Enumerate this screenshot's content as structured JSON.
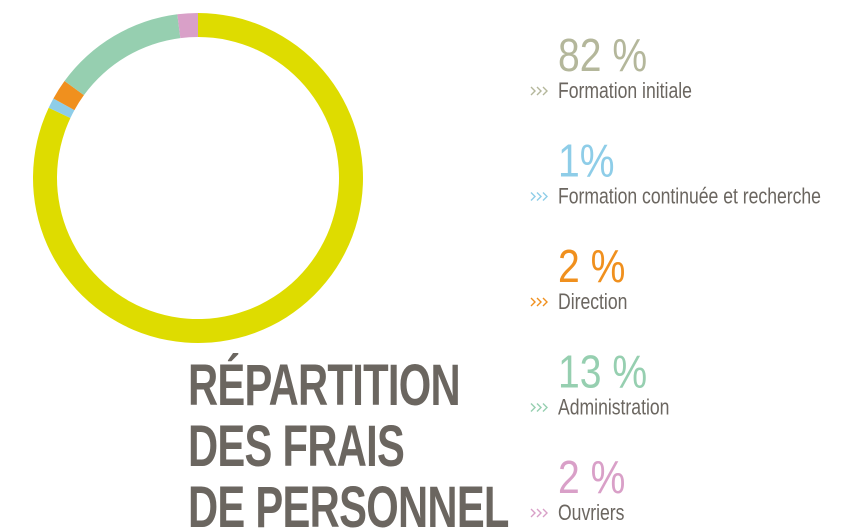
{
  "chart_data": {
    "type": "donut",
    "title": [
      "RÉPARTITION",
      "DES FRAIS",
      "DE PERSONNEL"
    ],
    "categories": [
      "Formation initiale",
      "Formation continuée et recherche",
      "Direction",
      "Administration",
      "Ouvriers"
    ],
    "values": [
      82,
      1,
      2,
      13,
      2
    ],
    "value_labels": [
      "82 %",
      "1%",
      "2 %",
      "13 %",
      "2 %"
    ],
    "colors": [
      "#dedc00",
      "#8ecde8",
      "#f0901e",
      "#96cfb0",
      "#d9a0c8"
    ],
    "label_colors": [
      "#b4b79b",
      "#8ecde8",
      "#f0901e",
      "#96cfb0",
      "#d9a0c8"
    ]
  }
}
